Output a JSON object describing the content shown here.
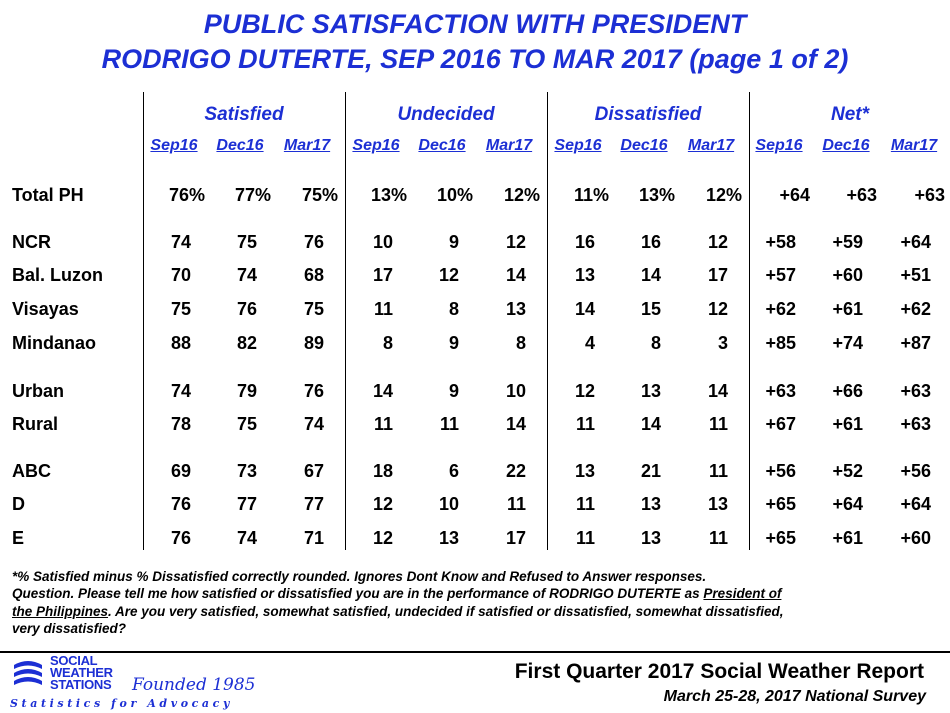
{
  "title": {
    "line1": "PUBLIC SATISFACTION WITH PRESIDENT",
    "line2": "RODRIGO DUTERTE, SEP 2016 TO MAR 2017 (page 1 of 2)"
  },
  "table": {
    "groups": [
      {
        "label": "Satisfied",
        "periods": [
          "Sep16",
          "Dec16",
          "Mar17"
        ]
      },
      {
        "label": "Undecided",
        "periods": [
          "Sep16",
          "Dec16",
          "Mar17"
        ]
      },
      {
        "label": "Dissatisfied",
        "periods": [
          "Sep16",
          "Dec16",
          "Mar17"
        ]
      },
      {
        "label": "Net*",
        "periods": [
          "Sep16",
          "Dec16",
          "Mar17"
        ]
      }
    ],
    "rows": [
      {
        "label": "Total PH",
        "values": [
          "76%",
          "77%",
          "75%",
          "13%",
          "10%",
          "12%",
          "11%",
          "13%",
          "12%",
          "+64",
          "+63",
          "+63"
        ]
      },
      {
        "label": "NCR",
        "values": [
          "74",
          "75",
          "76",
          "10",
          "9",
          "12",
          "16",
          "16",
          "12",
          "+58",
          "+59",
          "+64"
        ]
      },
      {
        "label": "Bal. Luzon",
        "values": [
          "70",
          "74",
          "68",
          "17",
          "12",
          "14",
          "13",
          "14",
          "17",
          "+57",
          "+60",
          "+51"
        ]
      },
      {
        "label": "Visayas",
        "values": [
          "75",
          "76",
          "75",
          "11",
          "8",
          "13",
          "14",
          "15",
          "12",
          "+62",
          "+61",
          "+62"
        ]
      },
      {
        "label": "Mindanao",
        "values": [
          "88",
          "82",
          "89",
          "8",
          "9",
          "8",
          "4",
          "8",
          "3",
          "+85",
          "+74",
          "+87"
        ]
      },
      {
        "label": "Urban",
        "values": [
          "74",
          "79",
          "76",
          "14",
          "9",
          "10",
          "12",
          "13",
          "14",
          "+63",
          "+66",
          "+63"
        ]
      },
      {
        "label": "Rural",
        "values": [
          "78",
          "75",
          "74",
          "11",
          "11",
          "14",
          "11",
          "14",
          "11",
          "+67",
          "+61",
          "+63"
        ]
      },
      {
        "label": "ABC",
        "values": [
          "69",
          "73",
          "67",
          "18",
          "6",
          "22",
          "13",
          "21",
          "11",
          "+56",
          "+52",
          "+56"
        ]
      },
      {
        "label": "D",
        "values": [
          "76",
          "77",
          "77",
          "12",
          "10",
          "11",
          "11",
          "13",
          "13",
          "+65",
          "+64",
          "+64"
        ]
      },
      {
        "label": "E",
        "values": [
          "76",
          "74",
          "71",
          "12",
          "13",
          "17",
          "11",
          "13",
          "11",
          "+65",
          "+61",
          "+60"
        ]
      }
    ]
  },
  "footnote": {
    "line1": "*% Satisfied minus % Dissatisfied correctly rounded. Ignores Dont Know and Refused to Answer responses.",
    "line2_a": "Question. Please tell me how satisfied or dissatisfied you are in the performance of RODRIGO DUTERTE as ",
    "line2_u": "President of",
    "line3_u": "the Philippines",
    "line3_b": ".   Are you very satisfied, somewhat satisfied, undecided if satisfied or dissatisfied, somewhat dissatisfied,",
    "line4": "very dissatisfied?"
  },
  "logo": {
    "line1": "SOCIAL",
    "line2": "WEATHER",
    "line3": "STATIONS",
    "founded": "Founded 1985",
    "tagline": "Statistics for Advocacy"
  },
  "report": {
    "title": "First Quarter 2017 Social Weather Report",
    "subtitle": "March 25-28, 2017 National Survey"
  },
  "colors": {
    "accent": "#1c2fd4"
  }
}
